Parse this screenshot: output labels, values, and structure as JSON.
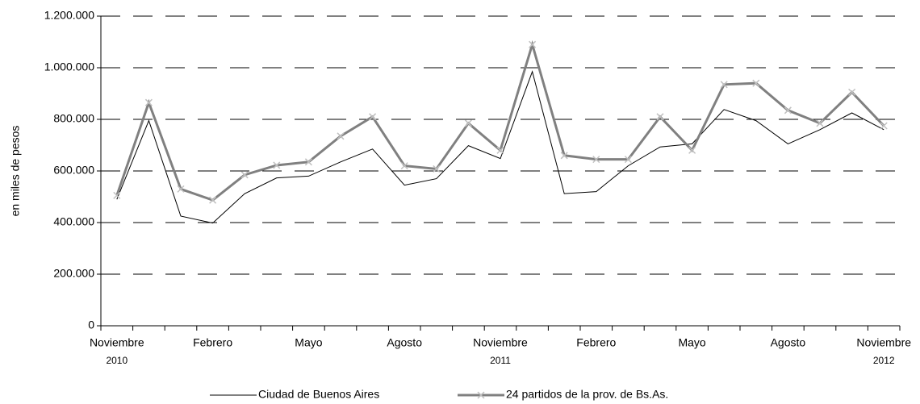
{
  "chart_data": {
    "type": "line",
    "y_label": "en miles de pesos",
    "categories": [
      "Noviembre",
      null,
      null,
      "Febrero",
      null,
      null,
      "Mayo",
      null,
      null,
      "Agosto",
      null,
      null,
      "Noviembre",
      null,
      null,
      "Febrero",
      null,
      null,
      "Mayo",
      null,
      null,
      "Agosto",
      null,
      null,
      "Noviembre"
    ],
    "years": [
      "2010",
      null,
      null,
      null,
      null,
      null,
      null,
      null,
      null,
      null,
      null,
      null,
      "2011",
      null,
      null,
      null,
      null,
      null,
      null,
      null,
      null,
      null,
      null,
      null,
      "2012"
    ],
    "series": [
      {
        "name": "Ciudad de Buenos Aires",
        "color": "#000000",
        "values": [
          490000,
          795000,
          425000,
          398000,
          512000,
          573000,
          580000,
          635000,
          685000,
          545000,
          570000,
          698000,
          648000,
          985000,
          512000,
          520000,
          620000,
          693000,
          705000,
          838000,
          795000,
          705000,
          760000,
          825000,
          760000
        ]
      },
      {
        "name": "24 partidos de la prov. de Bs.As.",
        "color": "#808080",
        "marker_color": "#c0c0c0",
        "values": [
          505000,
          865000,
          530000,
          487000,
          585000,
          622000,
          635000,
          735000,
          810000,
          620000,
          608000,
          785000,
          680000,
          1090000,
          660000,
          645000,
          645000,
          810000,
          680000,
          935000,
          940000,
          835000,
          785000,
          905000,
          775000
        ]
      }
    ],
    "ylim": [
      0,
      1200000
    ],
    "yticks": [
      {
        "value": 0,
        "label": "0"
      },
      {
        "value": 200000,
        "label": "200.000"
      },
      {
        "value": 400000,
        "label": "400.000"
      },
      {
        "value": 600000,
        "label": "600.000"
      },
      {
        "value": 800000,
        "label": "800.000"
      },
      {
        "value": 1000000,
        "label": "1.000.000"
      },
      {
        "value": 1200000,
        "label": "1.200.000"
      }
    ],
    "grid": true,
    "legend": "bottom"
  }
}
